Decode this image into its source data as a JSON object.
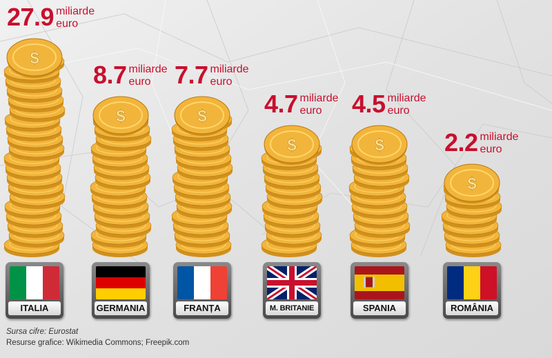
{
  "chart_data": {
    "type": "bar",
    "categories": [
      "ITALIA",
      "GERMANIA",
      "FRANȚA",
      "M. BRITANIE",
      "SPANIA",
      "ROMÂNIA"
    ],
    "values": [
      27.9,
      8.7,
      7.7,
      4.7,
      4.5,
      2.2
    ],
    "value_labels": [
      "27.9",
      "8.7",
      "7.7",
      "4.7",
      "4.5",
      "2.2"
    ],
    "unit_line1": "miliarde",
    "unit_line2": "euro",
    "value_color": "#c8102e",
    "bar_style": "stacked gold coins",
    "flags": [
      "italy-flag-icon",
      "germany-flag-icon",
      "france-flag-icon",
      "uk-flag-icon",
      "spain-flag-icon",
      "romania-flag-icon"
    ]
  },
  "footer": {
    "source": "Sursa cifre: Eurostat",
    "credits": "Resurse grafice: Wikimedia Commons; Freepik.com"
  },
  "colors": {
    "coin_gold": "#f2b53b",
    "coin_dark": "#d0901d",
    "coin_light": "#ffd66b",
    "accent_red": "#c8102e"
  }
}
